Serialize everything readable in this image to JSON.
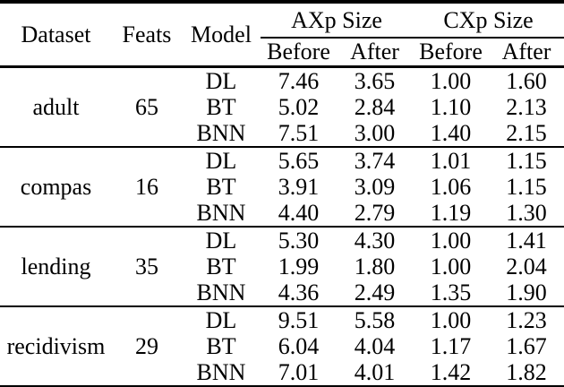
{
  "page": {
    "background": "#ffffff",
    "text_color": "#000000"
  },
  "table": {
    "headers": {
      "dataset": "Dataset",
      "feats": "Feats",
      "model": "Model",
      "axp_group": "AXp Size",
      "cxp_group": "CXp Size",
      "sub": [
        "Before",
        "After",
        "Before",
        "After"
      ]
    },
    "groups": [
      {
        "dataset": "adult",
        "feats": "65",
        "rows": [
          {
            "model": "DL",
            "values": [
              "7.46",
              "3.65",
              "1.00",
              "1.60"
            ]
          },
          {
            "model": "BT",
            "values": [
              "5.02",
              "2.84",
              "1.10",
              "2.13"
            ]
          },
          {
            "model": "BNN",
            "values": [
              "7.51",
              "3.00",
              "1.40",
              "2.15"
            ]
          }
        ]
      },
      {
        "dataset": "compas",
        "feats": "16",
        "rows": [
          {
            "model": "DL",
            "values": [
              "5.65",
              "3.74",
              "1.01",
              "1.15"
            ]
          },
          {
            "model": "BT",
            "values": [
              "3.91",
              "3.09",
              "1.06",
              "1.15"
            ]
          },
          {
            "model": "BNN",
            "values": [
              "4.40",
              "2.79",
              "1.19",
              "1.30"
            ]
          }
        ]
      },
      {
        "dataset": "lending",
        "feats": "35",
        "rows": [
          {
            "model": "DL",
            "values": [
              "5.30",
              "4.30",
              "1.00",
              "1.41"
            ]
          },
          {
            "model": "BT",
            "values": [
              "1.99",
              "1.80",
              "1.00",
              "2.04"
            ]
          },
          {
            "model": "BNN",
            "values": [
              "4.36",
              "2.49",
              "1.35",
              "1.90"
            ]
          }
        ]
      },
      {
        "dataset": "recidivism",
        "feats": "29",
        "rows": [
          {
            "model": "DL",
            "values": [
              "9.51",
              "5.58",
              "1.00",
              "1.23"
            ]
          },
          {
            "model": "BT",
            "values": [
              "6.04",
              "4.04",
              "1.17",
              "1.67"
            ]
          },
          {
            "model": "BNN",
            "values": [
              "7.01",
              "4.01",
              "1.42",
              "1.82"
            ]
          }
        ]
      }
    ]
  }
}
